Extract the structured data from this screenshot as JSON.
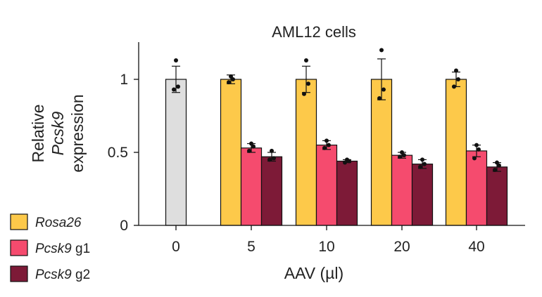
{
  "chart_data": {
    "type": "bar",
    "title": "AML12 cells",
    "xlabel": "AAV (µl)",
    "ylabel": {
      "line1": "Relative",
      "line2_italic": "Pcsk9",
      "line3": "expression"
    },
    "ylim": [
      0,
      1.25
    ],
    "yticks": [
      "0",
      "0.5",
      "1"
    ],
    "ytick_values": [
      0,
      0.5,
      1
    ],
    "categories": [
      "0",
      "5",
      "10",
      "20",
      "40"
    ],
    "legend": {
      "placement": "bottom-left",
      "entries": [
        {
          "italic": "Rosa26",
          "suffix": "",
          "color": "#FDC94A"
        },
        {
          "italic": "Pcsk9",
          "suffix": " g1",
          "color": "#F54B6E"
        },
        {
          "italic": "Pcsk9",
          "suffix": " g2",
          "color": "#7D1A37"
        }
      ]
    },
    "control": {
      "category": "0",
      "color": "#DEDEDE",
      "value": 1.0,
      "error": 0.09,
      "points": [
        1.13,
        0.95,
        0.93
      ]
    },
    "series": [
      {
        "name": "Rosa26",
        "color": "#FDC94A",
        "values": [
          null,
          1.0,
          1.0,
          1.0,
          1.0
        ],
        "errors": [
          null,
          0.03,
          0.09,
          0.14,
          0.05
        ],
        "points": [
          null,
          [
            1.02,
            1.0,
            0.98
          ],
          [
            1.13,
            0.97,
            0.9
          ],
          [
            1.2,
            0.93,
            0.87
          ],
          [
            1.06,
            1.0,
            0.95
          ]
        ]
      },
      {
        "name": "Pcsk9 g1",
        "color": "#F54B6E",
        "values": [
          null,
          0.53,
          0.55,
          0.48,
          0.51
        ],
        "errors": [
          null,
          0.03,
          0.03,
          0.02,
          0.04
        ],
        "points": [
          null,
          [
            0.56,
            0.54,
            0.51
          ],
          [
            0.58,
            0.55,
            0.53
          ],
          [
            0.5,
            0.48,
            0.47
          ],
          [
            0.55,
            0.52,
            0.46
          ]
        ]
      },
      {
        "name": "Pcsk9 g2",
        "color": "#7D1A37",
        "values": [
          null,
          0.47,
          0.44,
          0.42,
          0.4
        ],
        "errors": [
          null,
          0.03,
          0.01,
          0.03,
          0.03
        ],
        "points": [
          null,
          [
            0.51,
            0.46,
            0.45
          ],
          [
            0.45,
            0.44,
            0.43
          ],
          [
            0.45,
            0.42,
            0.4
          ],
          [
            0.43,
            0.41,
            0.38
          ]
        ]
      }
    ]
  }
}
